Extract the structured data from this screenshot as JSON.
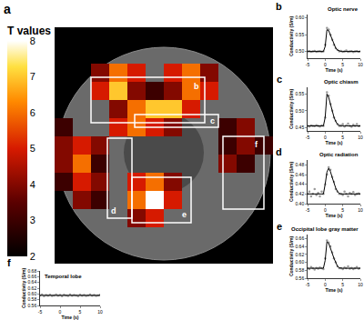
{
  "chart_data": [
    {
      "type": "heatmap",
      "label": "a",
      "colorbar_title": "T values",
      "colorbar_range": [
        2,
        8
      ],
      "colorbar_ticks": [
        2,
        3,
        4,
        5,
        6,
        7,
        8
      ],
      "tick_labels": false,
      "cells": [
        [
          null,
          null,
          null,
          null,
          null,
          null,
          null,
          null,
          null,
          null,
          null,
          null
        ],
        [
          null,
          null,
          null,
          null,
          null,
          null,
          null,
          null,
          null,
          null,
          null,
          null
        ],
        [
          null,
          null,
          4,
          6,
          5,
          null,
          5,
          6,
          4,
          null,
          null,
          null
        ],
        [
          null,
          null,
          5,
          7,
          4,
          3,
          4,
          6,
          5,
          null,
          null,
          null
        ],
        [
          null,
          null,
          null,
          4,
          6,
          7,
          7,
          5,
          null,
          null,
          null,
          null
        ],
        [
          3,
          null,
          null,
          5,
          6,
          5,
          4,
          null,
          null,
          3,
          4,
          null
        ],
        [
          4,
          5,
          4,
          null,
          null,
          null,
          null,
          null,
          null,
          3,
          4,
          3
        ],
        [
          4,
          6,
          3,
          null,
          null,
          null,
          null,
          null,
          null,
          4,
          3,
          null
        ],
        [
          3,
          5,
          4,
          null,
          5,
          6,
          4,
          null,
          null,
          null,
          null,
          null
        ],
        [
          null,
          4,
          3,
          null,
          6,
          8,
          5,
          null,
          null,
          null,
          null,
          null
        ],
        [
          null,
          null,
          null,
          null,
          4,
          5,
          null,
          null,
          null,
          null,
          null,
          null
        ],
        [
          null,
          null,
          null,
          null,
          null,
          null,
          null,
          null,
          null,
          null,
          null,
          null
        ],
        [
          null,
          null,
          null,
          null,
          null,
          null,
          null,
          null,
          null,
          null,
          null,
          null
        ]
      ]
    },
    {
      "type": "line",
      "label": "b",
      "title": "Optic nerve",
      "x_label": "Time (s)",
      "y_label": "Conductivity (S/m)",
      "x": [
        -5,
        -4.5,
        -4,
        -3.5,
        -3,
        -2.5,
        -2,
        -1.5,
        -1,
        -0.5,
        0,
        0.5,
        1,
        1.5,
        2,
        2.5,
        3,
        3.5,
        4,
        4.5,
        5,
        5.5,
        6,
        6.5,
        7,
        7.5,
        8,
        8.5,
        9,
        9.5,
        10
      ],
      "xlim": [
        -5,
        10
      ],
      "xticks": [
        -5,
        0,
        5,
        10
      ],
      "ylim": [
        0.48,
        0.61
      ],
      "yticks": [
        {
          "value": 0.5,
          "label": "0.50"
        },
        {
          "value": 0.55,
          "label": "0.55"
        },
        {
          "value": 0.6,
          "label": "0.60"
        }
      ],
      "series": [
        {
          "type": "scatter",
          "marker": "circle",
          "color": "#9a9a9a",
          "values": [
            0.5,
            0.501,
            0.499,
            0.5,
            0.502,
            0.499,
            0.5,
            0.501,
            0.499,
            0.5,
            0.52,
            0.57,
            0.565,
            0.55,
            0.535,
            0.52,
            0.51,
            0.505,
            0.5,
            0.502,
            0.499,
            0.5,
            0.503,
            0.499,
            0.5,
            0.501,
            0.498,
            0.5,
            0.501,
            0.499,
            0.5
          ]
        },
        {
          "type": "line",
          "line_style": "solid",
          "color": "#000000",
          "values": [
            0.5,
            0.5,
            0.5,
            0.5,
            0.5,
            0.5,
            0.5,
            0.5,
            0.5,
            0.5,
            0.515,
            0.565,
            0.562,
            0.548,
            0.533,
            0.52,
            0.51,
            0.504,
            0.501,
            0.5,
            0.5,
            0.5,
            0.5,
            0.5,
            0.5,
            0.5,
            0.5,
            0.5,
            0.5,
            0.5,
            0.5
          ]
        }
      ]
    },
    {
      "type": "line",
      "label": "c",
      "title": "Optic chiasm",
      "x_label": "Time (s)",
      "y_label": "Conductivity (S/m)",
      "x": [
        -5,
        -4.5,
        -4,
        -3.5,
        -3,
        -2.5,
        -2,
        -1.5,
        -1,
        -0.5,
        0,
        0.5,
        1,
        1.5,
        2,
        2.5,
        3,
        3.5,
        4,
        4.5,
        5,
        5.5,
        6,
        6.5,
        7,
        7.5,
        8,
        8.5,
        9,
        9.5,
        10
      ],
      "xlim": [
        -5,
        10
      ],
      "xticks": [
        -5,
        0,
        5,
        10
      ],
      "ylim": [
        0.44,
        0.57
      ],
      "yticks": [
        {
          "value": 0.45,
          "label": "0.45"
        },
        {
          "value": 0.5,
          "label": "0.50"
        },
        {
          "value": 0.55,
          "label": "0.55"
        }
      ],
      "series": [
        {
          "type": "scatter",
          "marker": "circle",
          "color": "#9a9a9a",
          "values": [
            0.455,
            0.453,
            0.456,
            0.455,
            0.454,
            0.457,
            0.455,
            0.453,
            0.456,
            0.455,
            0.48,
            0.555,
            0.545,
            0.52,
            0.5,
            0.48,
            0.47,
            0.46,
            0.455,
            0.455,
            0.46,
            0.453,
            0.456,
            0.462,
            0.455,
            0.452,
            0.458,
            0.455,
            0.46,
            0.454,
            0.455
          ]
        },
        {
          "type": "line",
          "line_style": "solid",
          "color": "#000000",
          "values": [
            0.455,
            0.455,
            0.455,
            0.455,
            0.455,
            0.455,
            0.455,
            0.455,
            0.455,
            0.455,
            0.48,
            0.55,
            0.54,
            0.518,
            0.498,
            0.481,
            0.468,
            0.46,
            0.456,
            0.455,
            0.455,
            0.455,
            0.455,
            0.455,
            0.455,
            0.455,
            0.455,
            0.455,
            0.455,
            0.455,
            0.455
          ]
        }
      ]
    },
    {
      "type": "line",
      "label": "d",
      "title": "Optic radiation",
      "x_label": "Time (s)",
      "y_label": "Conductivity (S/m)",
      "x": [
        -5,
        -4.5,
        -4,
        -3.5,
        -3,
        -2.5,
        -2,
        -1.5,
        -1,
        -0.5,
        0,
        0.5,
        1,
        1.5,
        2,
        2.5,
        3,
        3.5,
        4,
        4.5,
        5,
        5.5,
        6,
        6.5,
        7,
        7.5,
        8,
        8.5,
        9,
        9.5,
        10
      ],
      "xlim": [
        -5,
        10
      ],
      "xticks": [
        -5,
        0,
        5,
        10
      ],
      "ylim": [
        0.4,
        0.49
      ],
      "yticks": [
        {
          "value": 0.4,
          "label": "0.40"
        },
        {
          "value": 0.42,
          "label": "0.42"
        },
        {
          "value": 0.44,
          "label": "0.44"
        },
        {
          "value": 0.46,
          "label": "0.46"
        },
        {
          "value": 0.48,
          "label": "0.48"
        }
      ],
      "series": [
        {
          "type": "scatter",
          "marker": "circle",
          "color": "#9a9a9a",
          "values": [
            0.42,
            0.425,
            0.415,
            0.42,
            0.43,
            0.418,
            0.422,
            0.415,
            0.425,
            0.42,
            0.44,
            0.46,
            0.475,
            0.47,
            0.455,
            0.445,
            0.43,
            0.425,
            0.42,
            0.42,
            0.418,
            0.425,
            0.42,
            0.415,
            0.422,
            0.42,
            0.424,
            0.418,
            0.42,
            0.421,
            0.42
          ]
        },
        {
          "type": "line",
          "line_style": "solid",
          "color": "#000000",
          "values": [
            0.42,
            0.42,
            0.42,
            0.42,
            0.42,
            0.42,
            0.42,
            0.42,
            0.42,
            0.42,
            0.44,
            0.465,
            0.473,
            0.466,
            0.454,
            0.442,
            0.432,
            0.425,
            0.421,
            0.42,
            0.42,
            0.42,
            0.42,
            0.42,
            0.42,
            0.42,
            0.42,
            0.42,
            0.42,
            0.42,
            0.42
          ]
        }
      ]
    },
    {
      "type": "line",
      "label": "e",
      "title": "Occipital lobe gray matter",
      "x_label": "Time (s)",
      "y_label": "Conductivity (S/m)",
      "x": [
        -5,
        -4.5,
        -4,
        -3.5,
        -3,
        -2.5,
        -2,
        -1.5,
        -1,
        -0.5,
        0,
        0.5,
        1,
        1.5,
        2,
        2.5,
        3,
        3.5,
        4,
        4.5,
        5,
        5.5,
        6,
        6.5,
        7,
        7.5,
        8,
        8.5,
        9,
        9.5,
        10
      ],
      "xlim": [
        -5,
        10
      ],
      "xticks": [
        -5,
        0,
        5,
        10
      ],
      "ylim": [
        0.56,
        0.67
      ],
      "yticks": [
        {
          "value": 0.56,
          "label": "0.56"
        },
        {
          "value": 0.58,
          "label": "0.58"
        },
        {
          "value": 0.6,
          "label": "0.60"
        },
        {
          "value": 0.62,
          "label": "0.62"
        },
        {
          "value": 0.64,
          "label": "0.64"
        },
        {
          "value": 0.66,
          "label": "0.66"
        }
      ],
      "series": [
        {
          "type": "scatter",
          "marker": "circle",
          "color": "#9a9a9a",
          "values": [
            0.585,
            0.583,
            0.588,
            0.585,
            0.582,
            0.586,
            0.584,
            0.587,
            0.585,
            0.583,
            0.61,
            0.655,
            0.65,
            0.64,
            0.625,
            0.61,
            0.6,
            0.59,
            0.585,
            0.585,
            0.583,
            0.587,
            0.585,
            0.59,
            0.584,
            0.586,
            0.583,
            0.585,
            0.588,
            0.584,
            0.585
          ]
        },
        {
          "type": "line",
          "line_style": "solid",
          "color": "#000000",
          "values": [
            0.585,
            0.585,
            0.585,
            0.585,
            0.585,
            0.585,
            0.585,
            0.585,
            0.585,
            0.585,
            0.605,
            0.652,
            0.648,
            0.637,
            0.623,
            0.61,
            0.598,
            0.59,
            0.586,
            0.585,
            0.585,
            0.585,
            0.585,
            0.585,
            0.585,
            0.585,
            0.585,
            0.585,
            0.585,
            0.585,
            0.585
          ]
        }
      ]
    },
    {
      "type": "line",
      "label": "f",
      "title": "Temporal lobe",
      "x_label": "Time (s)",
      "y_label": "Conductivity (S/m)",
      "x": [
        -5,
        -4.5,
        -4,
        -3.5,
        -3,
        -2.5,
        -2,
        -1.5,
        -1,
        -0.5,
        0,
        0.5,
        1,
        1.5,
        2,
        2.5,
        3,
        3.5,
        4,
        4.5,
        5,
        5.5,
        6,
        6.5,
        7,
        7.5,
        8,
        8.5,
        9,
        9.5,
        10
      ],
      "xlim": [
        -5,
        10
      ],
      "xticks": [
        -5,
        0,
        5,
        10
      ],
      "ylim": [
        0.56,
        0.68
      ],
      "yticks": [
        {
          "value": 0.56,
          "label": "0.56"
        },
        {
          "value": 0.58,
          "label": "0.58"
        },
        {
          "value": 0.6,
          "label": "0.60"
        },
        {
          "value": 0.62,
          "label": "0.62"
        },
        {
          "value": 0.64,
          "label": "0.64"
        },
        {
          "value": 0.66,
          "label": "0.66"
        },
        {
          "value": 0.68,
          "label": "0.68"
        }
      ],
      "series": [
        {
          "type": "scatter",
          "marker": "circle",
          "color": "#9a9a9a",
          "values": [
            0.595,
            0.598,
            0.592,
            0.596,
            0.594,
            0.597,
            0.593,
            0.595,
            0.598,
            0.594,
            0.596,
            0.592,
            0.597,
            0.595,
            0.593,
            0.598,
            0.594,
            0.596,
            0.595,
            0.592,
            0.597,
            0.594,
            0.596,
            0.593,
            0.595,
            0.598,
            0.594,
            0.596,
            0.593,
            0.595,
            0.597
          ]
        },
        {
          "type": "line",
          "line_style": "solid",
          "color": "#000000",
          "values": [
            0.595,
            0.595,
            0.595,
            0.595,
            0.595,
            0.595,
            0.595,
            0.595,
            0.595,
            0.595,
            0.595,
            0.595,
            0.595,
            0.595,
            0.595,
            0.595,
            0.595,
            0.595,
            0.595,
            0.595,
            0.595,
            0.595,
            0.595,
            0.595,
            0.595,
            0.595,
            0.595,
            0.595,
            0.595,
            0.595,
            0.595
          ]
        }
      ]
    }
  ]
}
